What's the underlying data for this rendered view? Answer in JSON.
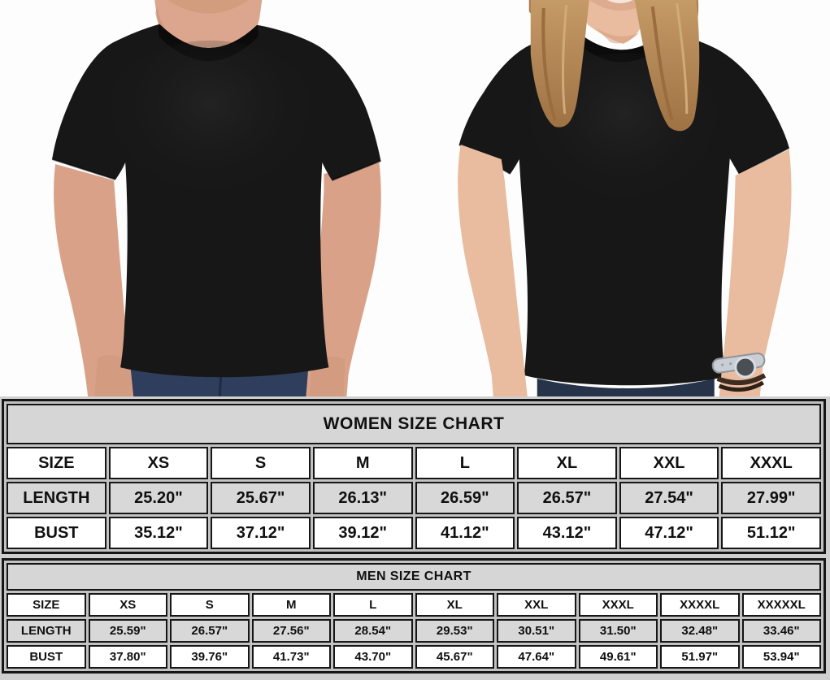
{
  "photos": {
    "left_model": "man wearing plain black crew-neck t-shirt",
    "right_model": "woman wearing plain black crew-neck t-shirt"
  },
  "chart_data": [
    {
      "type": "table",
      "title": "WOMEN SIZE CHART",
      "columns": [
        "SIZE",
        "XS",
        "S",
        "M",
        "L",
        "XL",
        "XXL",
        "XXXL"
      ],
      "rows": [
        {
          "label": "LENGTH",
          "values": [
            "25.20\"",
            "25.67\"",
            "26.13\"",
            "26.59\"",
            "26.57\"",
            "27.54\"",
            "27.99\""
          ]
        },
        {
          "label": "BUST",
          "values": [
            "35.12\"",
            "37.12\"",
            "39.12\"",
            "41.12\"",
            "43.12\"",
            "47.12\"",
            "51.12\""
          ]
        }
      ]
    },
    {
      "type": "table",
      "title": "MEN SIZE CHART",
      "columns": [
        "SIZE",
        "XS",
        "S",
        "M",
        "L",
        "XL",
        "XXL",
        "XXXL",
        "XXXXL",
        "XXXXXL"
      ],
      "rows": [
        {
          "label": "LENGTH",
          "values": [
            "25.59\"",
            "26.57\"",
            "27.56\"",
            "28.54\"",
            "29.53\"",
            "30.51\"",
            "31.50\"",
            "32.48\"",
            "33.46\""
          ]
        },
        {
          "label": "BUST",
          "values": [
            "37.80\"",
            "39.76\"",
            "41.73\"",
            "43.70\"",
            "45.67\"",
            "47.64\"",
            "49.61\"",
            "51.97\"",
            "53.94\""
          ]
        }
      ]
    }
  ],
  "colors": {
    "tshirt": "#171717",
    "collar": "#0b0b0b",
    "jeans_men": "#2e3e5c",
    "jeans_women": "#273349",
    "skin_man": "#d9a288",
    "skin_woman": "#e9bb9f",
    "hair_woman": "#b2854f",
    "table_border": "#161616",
    "table_title_bg": "#d6d6d6",
    "table_shaded_bg": "#d8d8d8",
    "table_cell_bg": "#ffffff",
    "photo_bg": "#fdfdfd"
  }
}
